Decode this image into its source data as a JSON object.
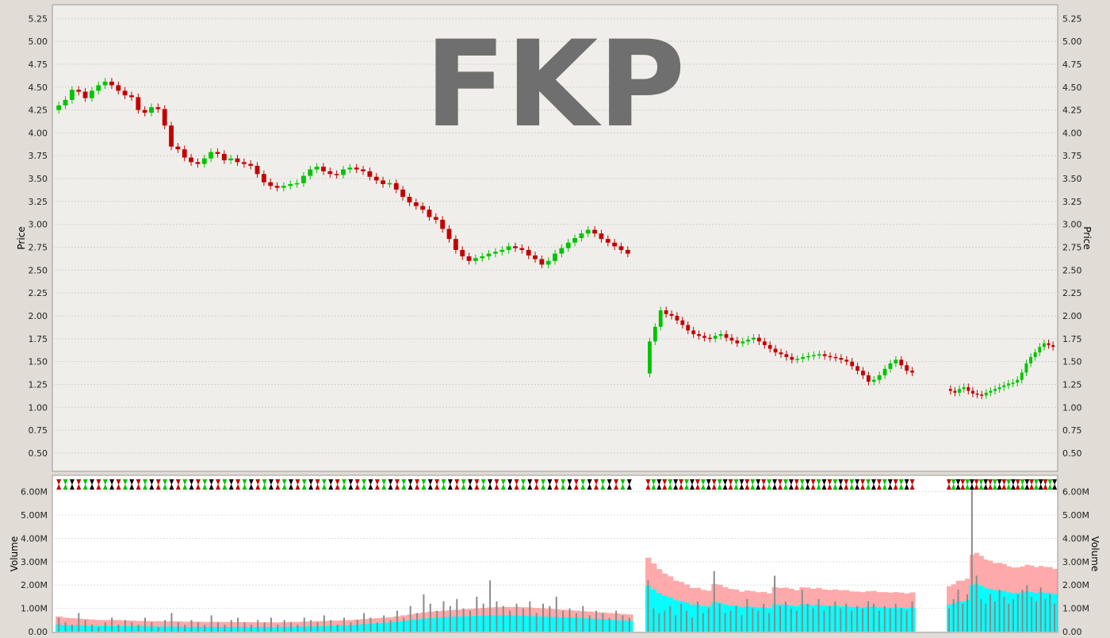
{
  "watermark": "FKP",
  "colors": {
    "up": "#00c400",
    "down": "#c40000",
    "neutral": "#000000",
    "volume_band_outer": "#ffaaaa",
    "volume_band_inner": "#00ffff",
    "volume_bar": "#8a8a8a"
  },
  "chart_data": [
    {
      "type": "candlestick",
      "title": "",
      "ylabel": "Price",
      "ylim": [
        0.3,
        5.4
      ],
      "y_ticks": [
        "5.25",
        "5.00",
        "4.75",
        "4.50",
        "4.25",
        "4.00",
        "3.75",
        "3.50",
        "3.25",
        "3.00",
        "2.75",
        "2.50",
        "2.25",
        "2.00",
        "1.75",
        "1.50",
        "1.25",
        "1.00",
        "0.75",
        "0.50"
      ],
      "grid": true,
      "segments": [
        {
          "name": "",
          "close": [
            4.3,
            4.36,
            4.47,
            4.45,
            4.38,
            4.46,
            4.52,
            4.56,
            4.52,
            4.46,
            4.41,
            4.39,
            4.25,
            4.22,
            4.28,
            4.26,
            4.08,
            3.85,
            3.82,
            3.73,
            3.68,
            3.66,
            3.72,
            3.79,
            3.77,
            3.7,
            3.72,
            3.68,
            3.66,
            3.64,
            3.55,
            3.46,
            3.42,
            3.4,
            3.42,
            3.44,
            3.45,
            3.53,
            3.6,
            3.63,
            3.58,
            3.55,
            3.54,
            3.6,
            3.62,
            3.6,
            3.58,
            3.52,
            3.48,
            3.44,
            3.45,
            3.38,
            3.3,
            3.24,
            3.2,
            3.16,
            3.08,
            3.05,
            2.95,
            2.84,
            2.72,
            2.65,
            2.6,
            2.63,
            2.65,
            2.68,
            2.7,
            2.72,
            2.76,
            2.74,
            2.72,
            2.66,
            2.62,
            2.56,
            2.6,
            2.68,
            2.74,
            2.8,
            2.85,
            2.9,
            2.94,
            2.9,
            2.84,
            2.8,
            2.76,
            2.72,
            2.68
          ]
        },
        {
          "name": "",
          "close": [
            1.72,
            1.88,
            2.06,
            2.02,
            2.0,
            1.95,
            1.9,
            1.84,
            1.8,
            1.78,
            1.76,
            1.75,
            1.78,
            1.8,
            1.76,
            1.73,
            1.7,
            1.72,
            1.74,
            1.76,
            1.72,
            1.68,
            1.64,
            1.6,
            1.58,
            1.55,
            1.52,
            1.53,
            1.55,
            1.56,
            1.57,
            1.58,
            1.56,
            1.55,
            1.54,
            1.52,
            1.5,
            1.45,
            1.4,
            1.35,
            1.28,
            1.3,
            1.35,
            1.42,
            1.48,
            1.52,
            1.46,
            1.4,
            1.38
          ]
        },
        {
          "name": "",
          "close": [
            1.18,
            1.16,
            1.2,
            1.22,
            1.18,
            1.15,
            1.14,
            1.13,
            1.16,
            1.18,
            1.2,
            1.22,
            1.24,
            1.26,
            1.27,
            1.3,
            1.38,
            1.48,
            1.55,
            1.6,
            1.66,
            1.7,
            1.68,
            1.66
          ]
        }
      ]
    },
    {
      "type": "bar",
      "title": "",
      "ylabel": "Volume",
      "ylim": [
        0,
        6.5
      ],
      "y_ticks": [
        "6.00M",
        "5.00M",
        "4.00M",
        "3.00M",
        "2.00M",
        "1.00M",
        "0.00"
      ],
      "grid": true,
      "segments": [
        {
          "volume_millions": [
            0.6,
            0.4,
            0.3,
            0.8,
            0.5,
            0.3,
            0.2,
            0.4,
            0.6,
            0.3,
            0.5,
            0.4,
            0.3,
            0.6,
            0.4,
            0.2,
            0.5,
            0.8,
            0.4,
            0.3,
            0.5,
            0.4,
            0.3,
            0.7,
            0.4,
            0.3,
            0.5,
            0.6,
            0.4,
            0.3,
            0.5,
            0.4,
            0.6,
            0.3,
            0.5,
            0.4,
            0.3,
            0.6,
            0.5,
            0.4,
            0.7,
            0.5,
            0.3,
            0.6,
            0.4,
            0.5,
            0.8,
            0.6,
            0.4,
            0.7,
            0.5,
            0.9,
            0.6,
            1.1,
            0.8,
            1.6,
            1.2,
            0.9,
            1.3,
            1.1,
            1.4,
            1.0,
            0.9,
            1.5,
            1.2,
            2.2,
            1.3,
            1.1,
            0.9,
            1.2,
            1.0,
            1.3,
            0.8,
            1.2,
            1.1,
            1.5,
            0.9,
            1.0,
            0.8,
            1.1,
            0.7,
            0.9,
            0.8,
            0.6,
            0.9,
            0.7,
            0.6
          ],
          "band_outer_millions": [
            0.65,
            0.6,
            0.58,
            0.56,
            0.54,
            0.52,
            0.5,
            0.5,
            0.5,
            0.5,
            0.48,
            0.48,
            0.46,
            0.46,
            0.45,
            0.45,
            0.44,
            0.44,
            0.44,
            0.43,
            0.43,
            0.43,
            0.42,
            0.42,
            0.42,
            0.42,
            0.41,
            0.41,
            0.41,
            0.41,
            0.4,
            0.4,
            0.4,
            0.4,
            0.41,
            0.42,
            0.42,
            0.43,
            0.44,
            0.45,
            0.46,
            0.47,
            0.48,
            0.49,
            0.5,
            0.52,
            0.54,
            0.56,
            0.58,
            0.6,
            0.62,
            0.66,
            0.7,
            0.74,
            0.78,
            0.82,
            0.86,
            0.88,
            0.9,
            0.92,
            0.94,
            0.96,
            0.98,
            1.0,
            1.02,
            1.04,
            1.05,
            1.06,
            1.06,
            1.06,
            1.05,
            1.04,
            1.02,
            1.0,
            0.98,
            0.96,
            0.94,
            0.92,
            0.9,
            0.88,
            0.86,
            0.84,
            0.82,
            0.8,
            0.78,
            0.76,
            0.74
          ],
          "band_inner_millions": [
            0.3,
            0.28,
            0.27,
            0.27,
            0.26,
            0.25,
            0.25,
            0.25,
            0.24,
            0.24,
            0.24,
            0.23,
            0.23,
            0.23,
            0.22,
            0.22,
            0.22,
            0.22,
            0.22,
            0.21,
            0.21,
            0.21,
            0.21,
            0.21,
            0.2,
            0.2,
            0.2,
            0.2,
            0.2,
            0.2,
            0.2,
            0.2,
            0.2,
            0.2,
            0.21,
            0.21,
            0.22,
            0.22,
            0.23,
            0.23,
            0.24,
            0.25,
            0.26,
            0.27,
            0.28,
            0.3,
            0.32,
            0.34,
            0.36,
            0.38,
            0.4,
            0.43,
            0.46,
            0.5,
            0.53,
            0.56,
            0.58,
            0.6,
            0.62,
            0.64,
            0.65,
            0.66,
            0.67,
            0.68,
            0.69,
            0.7,
            0.7,
            0.7,
            0.7,
            0.69,
            0.68,
            0.67,
            0.66,
            0.65,
            0.64,
            0.63,
            0.62,
            0.61,
            0.6,
            0.58,
            0.56,
            0.55,
            0.54,
            0.52,
            0.5,
            0.48,
            0.47
          ]
        },
        {
          "volume_millions": [
            2.2,
            1.0,
            0.8,
            0.9,
            1.1,
            0.7,
            1.2,
            0.9,
            0.6,
            1.3,
            0.8,
            1.0,
            2.6,
            1.2,
            0.8,
            0.9,
            1.1,
            0.7,
            1.4,
            1.0,
            0.9,
            1.2,
            0.8,
            2.4,
            1.1,
            1.3,
            1.0,
            0.9,
            1.8,
            1.2,
            1.0,
            1.4,
            0.9,
            1.1,
            1.3,
            1.0,
            1.2,
            0.9,
            1.1,
            1.0,
            1.3,
            1.2,
            0.9,
            1.1,
            1.0,
            1.2,
            1.0,
            0.9,
            1.3
          ]
        },
        {
          "volume_millions": [
            1.0,
            1.4,
            1.8,
            1.2,
            1.6,
            6.3,
            2.4,
            1.4,
            1.2,
            1.6,
            1.3,
            1.8,
            1.5,
            1.2,
            1.4,
            1.6,
            1.8,
            2.0,
            1.5,
            1.3,
            1.9,
            1.4,
            1.6,
            1.2
          ]
        }
      ]
    }
  ]
}
